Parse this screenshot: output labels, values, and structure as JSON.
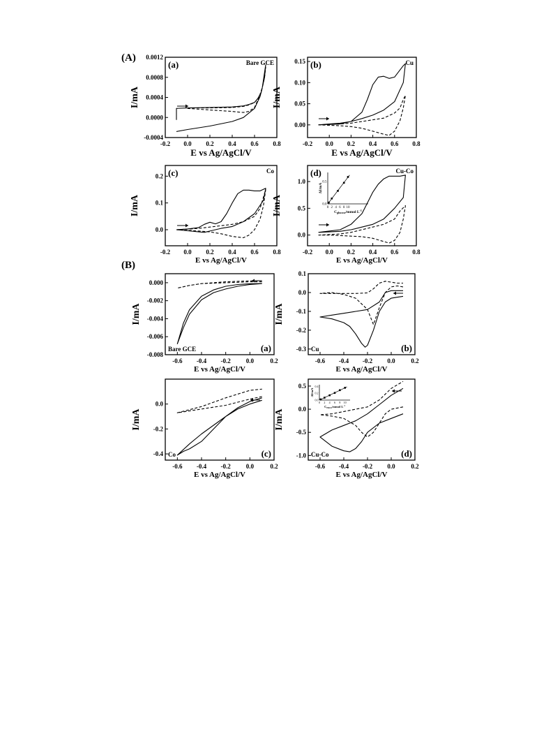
{
  "figure": {
    "section_labels": [
      "(A)",
      "(B)"
    ]
  },
  "chart_data": [
    {
      "type": "line",
      "section": "A",
      "panel": "(a)",
      "name": "Bare GCE",
      "xlabel": "E vs Ag/AgCl/V",
      "ylabel": "I/mA",
      "xlim": [
        -0.2,
        0.8
      ],
      "ylim": [
        -0.0004,
        0.0012
      ],
      "xticks": [
        "-0.2",
        "0.0",
        "0.2",
        "0.4",
        "0.6",
        "0.8"
      ],
      "yticks": [
        "-0.0004",
        "0.0000",
        "0.0004",
        "0.0008",
        "0.0012"
      ],
      "series": [
        {
          "style": "solid",
          "x": [
            -0.1,
            -0.1,
            0.0,
            0.2,
            0.4,
            0.5,
            0.55,
            0.6,
            0.63,
            0.66,
            0.69,
            0.7,
            0.69,
            0.67,
            0.65,
            0.6,
            0.5,
            0.4,
            0.2,
            0.0,
            -0.1
          ],
          "y": [
            -5e-05,
            0.00018,
            0.00019,
            0.0002,
            0.00021,
            0.00023,
            0.00026,
            0.0003,
            0.00038,
            0.0005,
            0.0008,
            0.00105,
            0.0009,
            0.0006,
            0.00042,
            0.00018,
            0.0,
            -8e-05,
            -0.00017,
            -0.00024,
            -0.00028
          ]
        },
        {
          "style": "dashed",
          "x": [
            0.0,
            0.2,
            0.4,
            0.5,
            0.55,
            0.6,
            0.63,
            0.66,
            0.69,
            0.7,
            0.69,
            0.67,
            0.64,
            0.6,
            0.55,
            0.5,
            0.4,
            0.2,
            0.0
          ],
          "y": [
            0.00019,
            0.00019,
            0.0002,
            0.00022,
            0.00025,
            0.0003,
            0.00037,
            0.0005,
            0.0008,
            0.001,
            0.00085,
            0.0006,
            0.0004,
            0.0002,
            0.00012,
            0.0001,
            0.00012,
            0.00015,
            0.00018
          ]
        }
      ]
    },
    {
      "type": "line",
      "section": "A",
      "panel": "(b)",
      "name": "Cu",
      "xlabel": "E vs Ag/AgCl/V",
      "ylabel": "I/mA",
      "xlim": [
        -0.2,
        0.8
      ],
      "ylim": [
        -0.03,
        0.16
      ],
      "xticks": [
        "-0.2",
        "0.0",
        "0.2",
        "0.4",
        "0.6",
        "0.8"
      ],
      "yticks": [
        "0.00",
        "0.05",
        "0.10",
        "0.15"
      ],
      "series": [
        {
          "style": "solid",
          "x": [
            -0.1,
            0.1,
            0.2,
            0.3,
            0.35,
            0.4,
            0.45,
            0.5,
            0.55,
            0.6,
            0.65,
            0.68,
            0.7,
            0.68,
            0.6,
            0.5,
            0.4,
            0.3,
            0.2,
            0.1,
            0.0,
            -0.1
          ],
          "y": [
            0.0,
            0.002,
            0.008,
            0.03,
            0.06,
            0.095,
            0.113,
            0.115,
            0.11,
            0.113,
            0.13,
            0.14,
            0.145,
            0.1,
            0.055,
            0.035,
            0.023,
            0.015,
            0.008,
            0.004,
            0.002,
            0.0
          ]
        },
        {
          "style": "dashed",
          "x": [
            -0.1,
            0.1,
            0.2,
            0.3,
            0.4,
            0.5,
            0.6,
            0.65,
            0.68,
            0.7,
            0.68,
            0.65,
            0.6,
            0.55,
            0.5,
            0.4,
            0.3,
            0.2,
            0.1,
            0.0,
            -0.1
          ],
          "y": [
            0.0,
            0.002,
            0.004,
            0.008,
            0.012,
            0.016,
            0.028,
            0.04,
            0.06,
            0.07,
            0.04,
            0.01,
            -0.015,
            -0.025,
            -0.022,
            -0.015,
            -0.008,
            -0.004,
            -0.002,
            -0.001,
            0.0
          ]
        }
      ]
    },
    {
      "type": "line",
      "section": "A",
      "panel": "(c)",
      "name": "Co",
      "xlabel": "E vs Ag/AgCl/V",
      "ylabel": "I/mA",
      "xlim": [
        -0.2,
        0.8
      ],
      "ylim": [
        -0.06,
        0.24
      ],
      "xticks": [
        "-0.2",
        "0.0",
        "0.2",
        "0.4",
        "0.6",
        "0.8"
      ],
      "yticks": [
        "0.0",
        "0.1",
        "0.2"
      ],
      "series": [
        {
          "style": "solid",
          "x": [
            -0.1,
            0.0,
            0.1,
            0.15,
            0.2,
            0.25,
            0.3,
            0.35,
            0.4,
            0.45,
            0.5,
            0.55,
            0.6,
            0.65,
            0.7,
            0.68,
            0.6,
            0.5,
            0.4,
            0.3,
            0.2,
            0.15,
            0.1,
            0.0,
            -0.1
          ],
          "y": [
            0.0,
            0.003,
            0.008,
            0.02,
            0.028,
            0.022,
            0.03,
            0.06,
            0.1,
            0.135,
            0.148,
            0.148,
            0.145,
            0.145,
            0.155,
            0.11,
            0.06,
            0.03,
            0.012,
            0.005,
            -0.005,
            -0.01,
            -0.008,
            -0.004,
            0.0
          ]
        },
        {
          "style": "dashed",
          "x": [
            -0.1,
            0.0,
            0.1,
            0.2,
            0.3,
            0.4,
            0.5,
            0.6,
            0.65,
            0.7,
            0.68,
            0.65,
            0.6,
            0.55,
            0.5,
            0.4,
            0.3,
            0.2,
            0.1,
            0.0,
            -0.1
          ],
          "y": [
            0.0,
            0.002,
            0.005,
            0.01,
            0.015,
            0.02,
            0.03,
            0.05,
            0.08,
            0.15,
            0.09,
            0.04,
            0.0,
            -0.02,
            -0.03,
            -0.025,
            -0.015,
            -0.008,
            -0.005,
            -0.002,
            0.0
          ]
        }
      ]
    },
    {
      "type": "line",
      "section": "A",
      "panel": "(d)",
      "name": "Cu-Co",
      "xlabel": "E vs Ag/AgCl/V",
      "ylabel": "I/mA",
      "xlim": [
        -0.2,
        0.8
      ],
      "ylim": [
        -0.2,
        1.3
      ],
      "xticks": [
        "-0.2",
        "0.0",
        "0.2",
        "0.4",
        "0.6",
        "0.8"
      ],
      "yticks": [
        "0.0",
        "0.5",
        "1.0"
      ],
      "series": [
        {
          "style": "solid",
          "x": [
            -0.1,
            0.1,
            0.2,
            0.3,
            0.35,
            0.4,
            0.45,
            0.5,
            0.55,
            0.6,
            0.65,
            0.7,
            0.68,
            0.6,
            0.5,
            0.4,
            0.3,
            0.2,
            0.1,
            0.0,
            -0.1
          ],
          "y": [
            0.05,
            0.1,
            0.2,
            0.4,
            0.6,
            0.8,
            0.95,
            1.05,
            1.1,
            1.1,
            1.1,
            1.12,
            0.7,
            0.5,
            0.3,
            0.2,
            0.15,
            0.1,
            0.07,
            0.06,
            0.05
          ]
        },
        {
          "style": "dashed",
          "x": [
            -0.1,
            0.1,
            0.2,
            0.3,
            0.4,
            0.5,
            0.6,
            0.65,
            0.7,
            0.68,
            0.65,
            0.6,
            0.55,
            0.5,
            0.4,
            0.3,
            0.2,
            0.1,
            0.0,
            -0.1
          ],
          "y": [
            0.0,
            0.02,
            0.05,
            0.1,
            0.15,
            0.2,
            0.3,
            0.45,
            0.55,
            0.3,
            0.05,
            -0.1,
            -0.15,
            -0.12,
            -0.06,
            -0.03,
            -0.02,
            -0.01,
            0.0,
            0.0
          ]
        }
      ],
      "inset": {
        "type": "scatter",
        "xlabel": "C",
        "xlabel_sub": "glucose",
        "xlabel_rest": "/mmol L",
        "xlabel_sup": "-1",
        "ylabel": "ΔI/mA",
        "xlim": [
          0,
          20
        ],
        "ylim": [
          0,
          0.7
        ],
        "xticks": [
          "0",
          "2",
          "4",
          "6",
          "8",
          "10"
        ],
        "yticks": [
          "0.0",
          "0.5"
        ],
        "x": [
          0.5,
          2,
          5,
          8,
          10
        ],
        "y": [
          0.03,
          0.12,
          0.29,
          0.47,
          0.6
        ]
      }
    },
    {
      "type": "line",
      "section": "B",
      "panel": "(a)",
      "name": "Bare GCE",
      "xlabel": "E vs Ag/AgCl/V",
      "ylabel": "I/mA",
      "xlim": [
        -0.7,
        0.2
      ],
      "ylim": [
        -0.008,
        0.001
      ],
      "xticks": [
        "-0.6",
        "-0.4",
        "-0.2",
        "0.0",
        "0.2"
      ],
      "yticks": [
        "-0.008",
        "-0.006",
        "-0.004",
        "-0.002",
        "0.000"
      ],
      "series": [
        {
          "style": "solid",
          "x": [
            0.1,
            0.0,
            -0.1,
            -0.2,
            -0.3,
            -0.4,
            -0.5,
            -0.55,
            -0.6,
            -0.55,
            -0.5,
            -0.4,
            -0.3,
            -0.2,
            -0.1,
            0.0,
            0.1
          ],
          "y": [
            -0.0001,
            -0.00012,
            -0.0002,
            -0.0004,
            -0.0008,
            -0.0015,
            -0.003,
            -0.0045,
            -0.0068,
            -0.005,
            -0.0035,
            -0.0019,
            -0.0011,
            -0.0007,
            -0.0004,
            -0.0002,
            -0.0001
          ]
        },
        {
          "style": "dashed",
          "x": [
            0.1,
            0.0,
            -0.2,
            -0.4,
            -0.5,
            -0.6,
            -0.5,
            -0.4,
            -0.2,
            0.0,
            0.1
          ],
          "y": [
            0.0001,
            0.0001,
            0.0,
            -0.0001,
            -0.0003,
            -0.0006,
            -0.0003,
            -0.0001,
            0.0001,
            0.0002,
            0.00022
          ]
        }
      ]
    },
    {
      "type": "line",
      "section": "B",
      "panel": "(b)",
      "name": "Cu",
      "xlabel": "E vs Ag/AgCl/V",
      "ylabel": "I/mA",
      "xlim": [
        -0.7,
        0.2
      ],
      "ylim": [
        -0.33,
        0.1
      ],
      "xticks": [
        "-0.6",
        "-0.4",
        "-0.2",
        "0.0",
        "0.2"
      ],
      "yticks": [
        "-0.3",
        "-0.2",
        "-0.1",
        "0.0",
        "0.1"
      ],
      "series": [
        {
          "style": "solid",
          "x": [
            0.1,
            0.05,
            0.0,
            -0.05,
            -0.1,
            -0.15,
            -0.2,
            -0.22,
            -0.25,
            -0.3,
            -0.35,
            -0.4,
            -0.5,
            -0.6,
            -0.5,
            -0.4,
            -0.3,
            -0.2,
            -0.1,
            -0.05,
            0.0,
            0.05,
            0.1
          ],
          "y": [
            -0.02,
            -0.025,
            -0.03,
            -0.05,
            -0.1,
            -0.2,
            -0.28,
            -0.29,
            -0.27,
            -0.22,
            -0.18,
            -0.16,
            -0.14,
            -0.13,
            -0.12,
            -0.11,
            -0.1,
            -0.09,
            -0.05,
            0.0,
            0.01,
            0.01,
            0.01
          ]
        },
        {
          "style": "dashed",
          "x": [
            0.1,
            0.05,
            0.0,
            -0.05,
            -0.1,
            -0.15,
            -0.2,
            -0.3,
            -0.4,
            -0.5,
            -0.6,
            -0.5,
            -0.4,
            -0.3,
            -0.2,
            -0.15,
            -0.1,
            -0.05,
            0.0,
            0.05,
            0.1
          ],
          "y": [
            0.03,
            0.035,
            0.03,
            0.0,
            -0.08,
            -0.17,
            -0.09,
            -0.03,
            -0.01,
            0.0,
            -0.005,
            -0.005,
            -0.005,
            -0.005,
            -0.002,
            0.02,
            0.05,
            0.06,
            0.055,
            0.05,
            0.05
          ]
        }
      ]
    },
    {
      "type": "line",
      "section": "B",
      "panel": "(c)",
      "name": "Co",
      "xlabel": "E vs Ag/AgCl/V",
      "ylabel": "I/mA",
      "xlim": [
        -0.7,
        0.2
      ],
      "ylim": [
        -0.45,
        0.2
      ],
      "xticks": [
        "-0.6",
        "-0.4",
        "-0.2",
        "0.0",
        "0.2"
      ],
      "yticks": [
        "-0.4",
        "-0.2",
        "0.0"
      ],
      "series": [
        {
          "style": "solid",
          "x": [
            0.1,
            0.0,
            -0.1,
            -0.2,
            -0.3,
            -0.4,
            -0.5,
            -0.55,
            -0.6,
            -0.5,
            -0.4,
            -0.3,
            -0.2,
            -0.1,
            0.0,
            0.1
          ],
          "y": [
            0.03,
            0.0,
            -0.04,
            -0.1,
            -0.2,
            -0.3,
            -0.36,
            -0.38,
            -0.41,
            -0.32,
            -0.24,
            -0.17,
            -0.1,
            -0.03,
            0.02,
            0.05
          ]
        },
        {
          "style": "dashed",
          "x": [
            0.1,
            0.0,
            -0.2,
            -0.4,
            -0.6,
            -0.4,
            -0.2,
            0.0,
            0.1
          ],
          "y": [
            0.06,
            0.04,
            -0.01,
            -0.04,
            -0.07,
            -0.02,
            0.05,
            0.11,
            0.12
          ]
        }
      ]
    },
    {
      "type": "line",
      "section": "B",
      "panel": "(d)",
      "name": "Cu-Co",
      "xlabel": "E vs Ag/AgCl/V",
      "ylabel": "I/mA",
      "xlim": [
        -0.7,
        0.2
      ],
      "ylim": [
        -1.1,
        0.65
      ],
      "xticks": [
        "-0.6",
        "-0.4",
        "-0.2",
        "0.0",
        "0.2"
      ],
      "yticks": [
        "-1.0",
        "-0.5",
        "0.0",
        "0.5"
      ],
      "series": [
        {
          "style": "solid",
          "x": [
            0.1,
            0.0,
            -0.1,
            -0.2,
            -0.25,
            -0.3,
            -0.35,
            -0.4,
            -0.5,
            -0.6,
            -0.5,
            -0.4,
            -0.3,
            -0.2,
            -0.1,
            0.0,
            0.1
          ],
          "y": [
            -0.1,
            -0.2,
            -0.3,
            -0.5,
            -0.7,
            -0.85,
            -0.92,
            -0.9,
            -0.8,
            -0.6,
            -0.45,
            -0.35,
            -0.25,
            -0.1,
            0.1,
            0.3,
            0.45
          ]
        },
        {
          "style": "dashed",
          "x": [
            0.1,
            0.0,
            -0.05,
            -0.1,
            -0.15,
            -0.2,
            -0.25,
            -0.3,
            -0.4,
            -0.5,
            -0.6,
            -0.5,
            -0.4,
            -0.3,
            -0.2,
            -0.1,
            0.0,
            0.1
          ],
          "y": [
            0.05,
            0.0,
            -0.1,
            -0.3,
            -0.5,
            -0.6,
            -0.5,
            -0.35,
            -0.2,
            -0.15,
            -0.12,
            -0.1,
            -0.05,
            0.0,
            0.05,
            0.2,
            0.45,
            0.6
          ]
        }
      ],
      "inset": {
        "type": "scatter",
        "xlabel": "C",
        "xlabel_sub": "H2O2",
        "xlabel_rest": "/mmol L",
        "xlabel_sup": "-1",
        "ylabel": "ΔI/mA",
        "xlim": [
          0,
          12
        ],
        "ylim": [
          0,
          0.45
        ],
        "xticks": [
          "0",
          "2",
          "4",
          "6",
          "8",
          "10"
        ],
        "yticks": [
          "0.0",
          "0.2",
          "0.4"
        ],
        "x": [
          0.5,
          2,
          4,
          6,
          8,
          10
        ],
        "y": [
          0.02,
          0.07,
          0.14,
          0.21,
          0.29,
          0.36
        ]
      }
    }
  ]
}
